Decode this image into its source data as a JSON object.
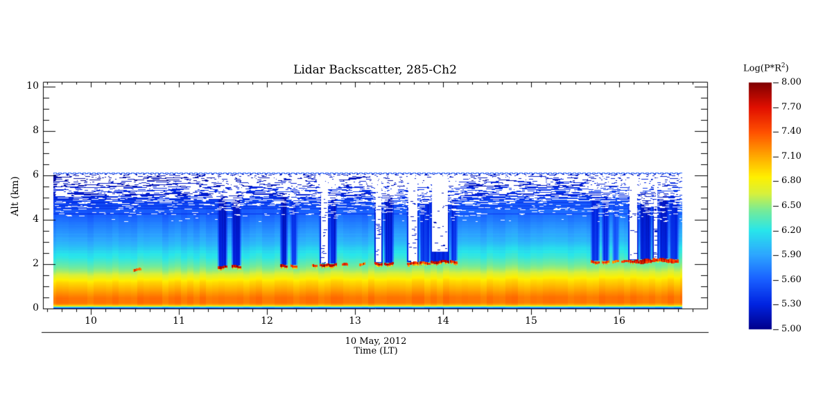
{
  "title": "Lidar Backscatter, 285-Ch2",
  "axes": {
    "x": {
      "date_label": "10 May, 2012",
      "label": "Time (LT)",
      "ticks": [
        "10",
        "11",
        "12",
        "13",
        "14",
        "15",
        "16"
      ]
    },
    "y": {
      "label": "Alt (km)",
      "ticks": [
        "0",
        "2",
        "4",
        "6",
        "8",
        "10"
      ],
      "tick_values": [
        0,
        2,
        4,
        6,
        8,
        10
      ]
    }
  },
  "colorbar": {
    "label_prefix": "Log(P*R",
    "label_sup": "2",
    "label_suffix": ")",
    "ticks": [
      "8.00",
      "7.70",
      "7.40",
      "7.10",
      "6.80",
      "6.50",
      "6.20",
      "5.90",
      "5.60",
      "5.30",
      "5.00"
    ]
  },
  "chart_data": {
    "type": "heatmap",
    "title": "Lidar Backscatter, 285-Ch2",
    "xlabel": "Time (LT)",
    "date": "10 May, 2012",
    "ylabel": "Alt (km)",
    "value_label": "Log(P*R^2)",
    "x_range": [
      9.457,
      17.0
    ],
    "y_range": [
      0,
      10.22
    ],
    "value_range": [
      5.0,
      8.0
    ],
    "x_tick_values": [
      10,
      11,
      12,
      13,
      14,
      15,
      16
    ],
    "x_minor_per_major": 6,
    "y_minor_per_major": 4,
    "colorbar_tick_step": 0.3,
    "data_extent": {
      "t": [
        9.58,
        16.69
      ],
      "z": [
        0.0,
        6.1
      ]
    },
    "grid": false,
    "legend_position": "right-colorbar",
    "colormap": [
      [
        5.0,
        "#00008C"
      ],
      [
        5.3,
        "#0023E1"
      ],
      [
        5.6,
        "#195FFF"
      ],
      [
        5.9,
        "#2DA5FF"
      ],
      [
        6.2,
        "#28E6EB"
      ],
      [
        6.45,
        "#78EB96"
      ],
      [
        6.65,
        "#D7F03C"
      ],
      [
        6.85,
        "#FFF000"
      ],
      [
        7.1,
        "#FFAA00"
      ],
      [
        7.4,
        "#FF5000"
      ],
      [
        7.7,
        "#E10F00"
      ],
      [
        8.0,
        "#800000"
      ]
    ],
    "profile_alt_vs_value": [
      [
        0.0,
        5.5
      ],
      [
        0.03,
        5.9
      ],
      [
        0.06,
        6.35
      ],
      [
        0.1,
        6.85
      ],
      [
        0.14,
        7.1
      ],
      [
        0.22,
        7.27
      ],
      [
        0.45,
        7.28
      ],
      [
        0.65,
        7.18
      ],
      [
        0.9,
        7.05
      ],
      [
        1.15,
        6.92
      ],
      [
        1.4,
        6.72
      ],
      [
        1.65,
        6.52
      ],
      [
        1.9,
        6.38
      ],
      [
        2.15,
        6.26
      ],
      [
        2.45,
        6.16
      ],
      [
        2.75,
        6.01
      ],
      [
        3.1,
        5.9
      ],
      [
        3.5,
        5.78
      ],
      [
        3.95,
        5.66
      ],
      [
        4.35,
        5.54
      ],
      [
        4.85,
        5.4
      ],
      [
        5.35,
        5.27
      ],
      [
        5.75,
        5.17
      ],
      [
        6.1,
        5.08
      ]
    ],
    "profile_growth_factor_end": 1.105,
    "noise_band": {
      "z_min": 4.15,
      "z_max": 6.02,
      "dashed_top_z": 6.06
    },
    "surface_band_red_right": {
      "t0": 16.02,
      "t1": 16.675,
      "z": 2.1
    },
    "clouds": [
      {
        "t0": 10.48,
        "t1": 10.57,
        "top": 1.73,
        "kind": "streak",
        "strength": "faint"
      },
      {
        "t0": 11.44,
        "t1": 11.54,
        "top": 1.85,
        "kind": "dark",
        "strength": "strong"
      },
      {
        "t0": 11.6,
        "t1": 11.7,
        "top": 1.87,
        "kind": "dark",
        "strength": "strong"
      },
      {
        "t0": 12.15,
        "t1": 12.23,
        "top": 1.9,
        "kind": "dark",
        "strength": "strong"
      },
      {
        "t0": 12.27,
        "t1": 12.34,
        "top": 1.9,
        "kind": "dark",
        "strength": "med"
      },
      {
        "t0": 12.51,
        "t1": 12.57,
        "top": 1.93,
        "kind": "streak",
        "strength": "med"
      },
      {
        "t0": 12.6,
        "t1": 12.7,
        "top": 1.95,
        "kind": "white",
        "strength": "strong"
      },
      {
        "t0": 12.71,
        "t1": 12.79,
        "top": 1.95,
        "kind": "dark",
        "strength": "strong"
      },
      {
        "t0": 12.85,
        "t1": 12.91,
        "top": 1.96,
        "kind": "streak",
        "strength": "med"
      },
      {
        "t0": 13.05,
        "t1": 13.11,
        "top": 1.98,
        "kind": "streak",
        "strength": "faint"
      },
      {
        "t0": 13.22,
        "t1": 13.31,
        "top": 2.0,
        "kind": "white",
        "strength": "strong"
      },
      {
        "t0": 13.33,
        "t1": 13.43,
        "top": 2.0,
        "kind": "dark",
        "strength": "strong"
      },
      {
        "t0": 13.59,
        "t1": 13.72,
        "top": 2.02,
        "kind": "white",
        "strength": "med"
      },
      {
        "t0": 13.73,
        "t1": 13.85,
        "top": 2.03,
        "kind": "dark",
        "strength": "med"
      },
      {
        "t0": 13.86,
        "t1": 14.06,
        "top": 2.06,
        "kind": "white",
        "strength": "strong",
        "white_base": 2.55,
        "slope": 0.25
      },
      {
        "t0": 14.08,
        "t1": 14.16,
        "top": 2.08,
        "kind": "dark",
        "strength": "med"
      },
      {
        "t0": 15.68,
        "t1": 15.77,
        "top": 2.08,
        "kind": "dark",
        "strength": "med"
      },
      {
        "t0": 15.8,
        "t1": 15.88,
        "top": 2.09,
        "kind": "dark",
        "strength": "med"
      },
      {
        "t0": 15.92,
        "t1": 15.99,
        "top": 2.1,
        "kind": "dark",
        "strength": "faint"
      },
      {
        "t0": 16.1,
        "t1": 16.21,
        "top": 2.12,
        "kind": "white",
        "strength": "strong"
      },
      {
        "t0": 16.23,
        "t1": 16.36,
        "top": 2.15,
        "kind": "dark",
        "strength": "strong"
      },
      {
        "t0": 16.38,
        "t1": 16.44,
        "top": 2.17,
        "kind": "white",
        "strength": "med"
      },
      {
        "t0": 16.45,
        "t1": 16.56,
        "top": 2.18,
        "kind": "dark",
        "strength": "strong"
      },
      {
        "t0": 16.57,
        "t1": 16.67,
        "top": 2.16,
        "kind": "dark",
        "strength": "med"
      }
    ]
  }
}
